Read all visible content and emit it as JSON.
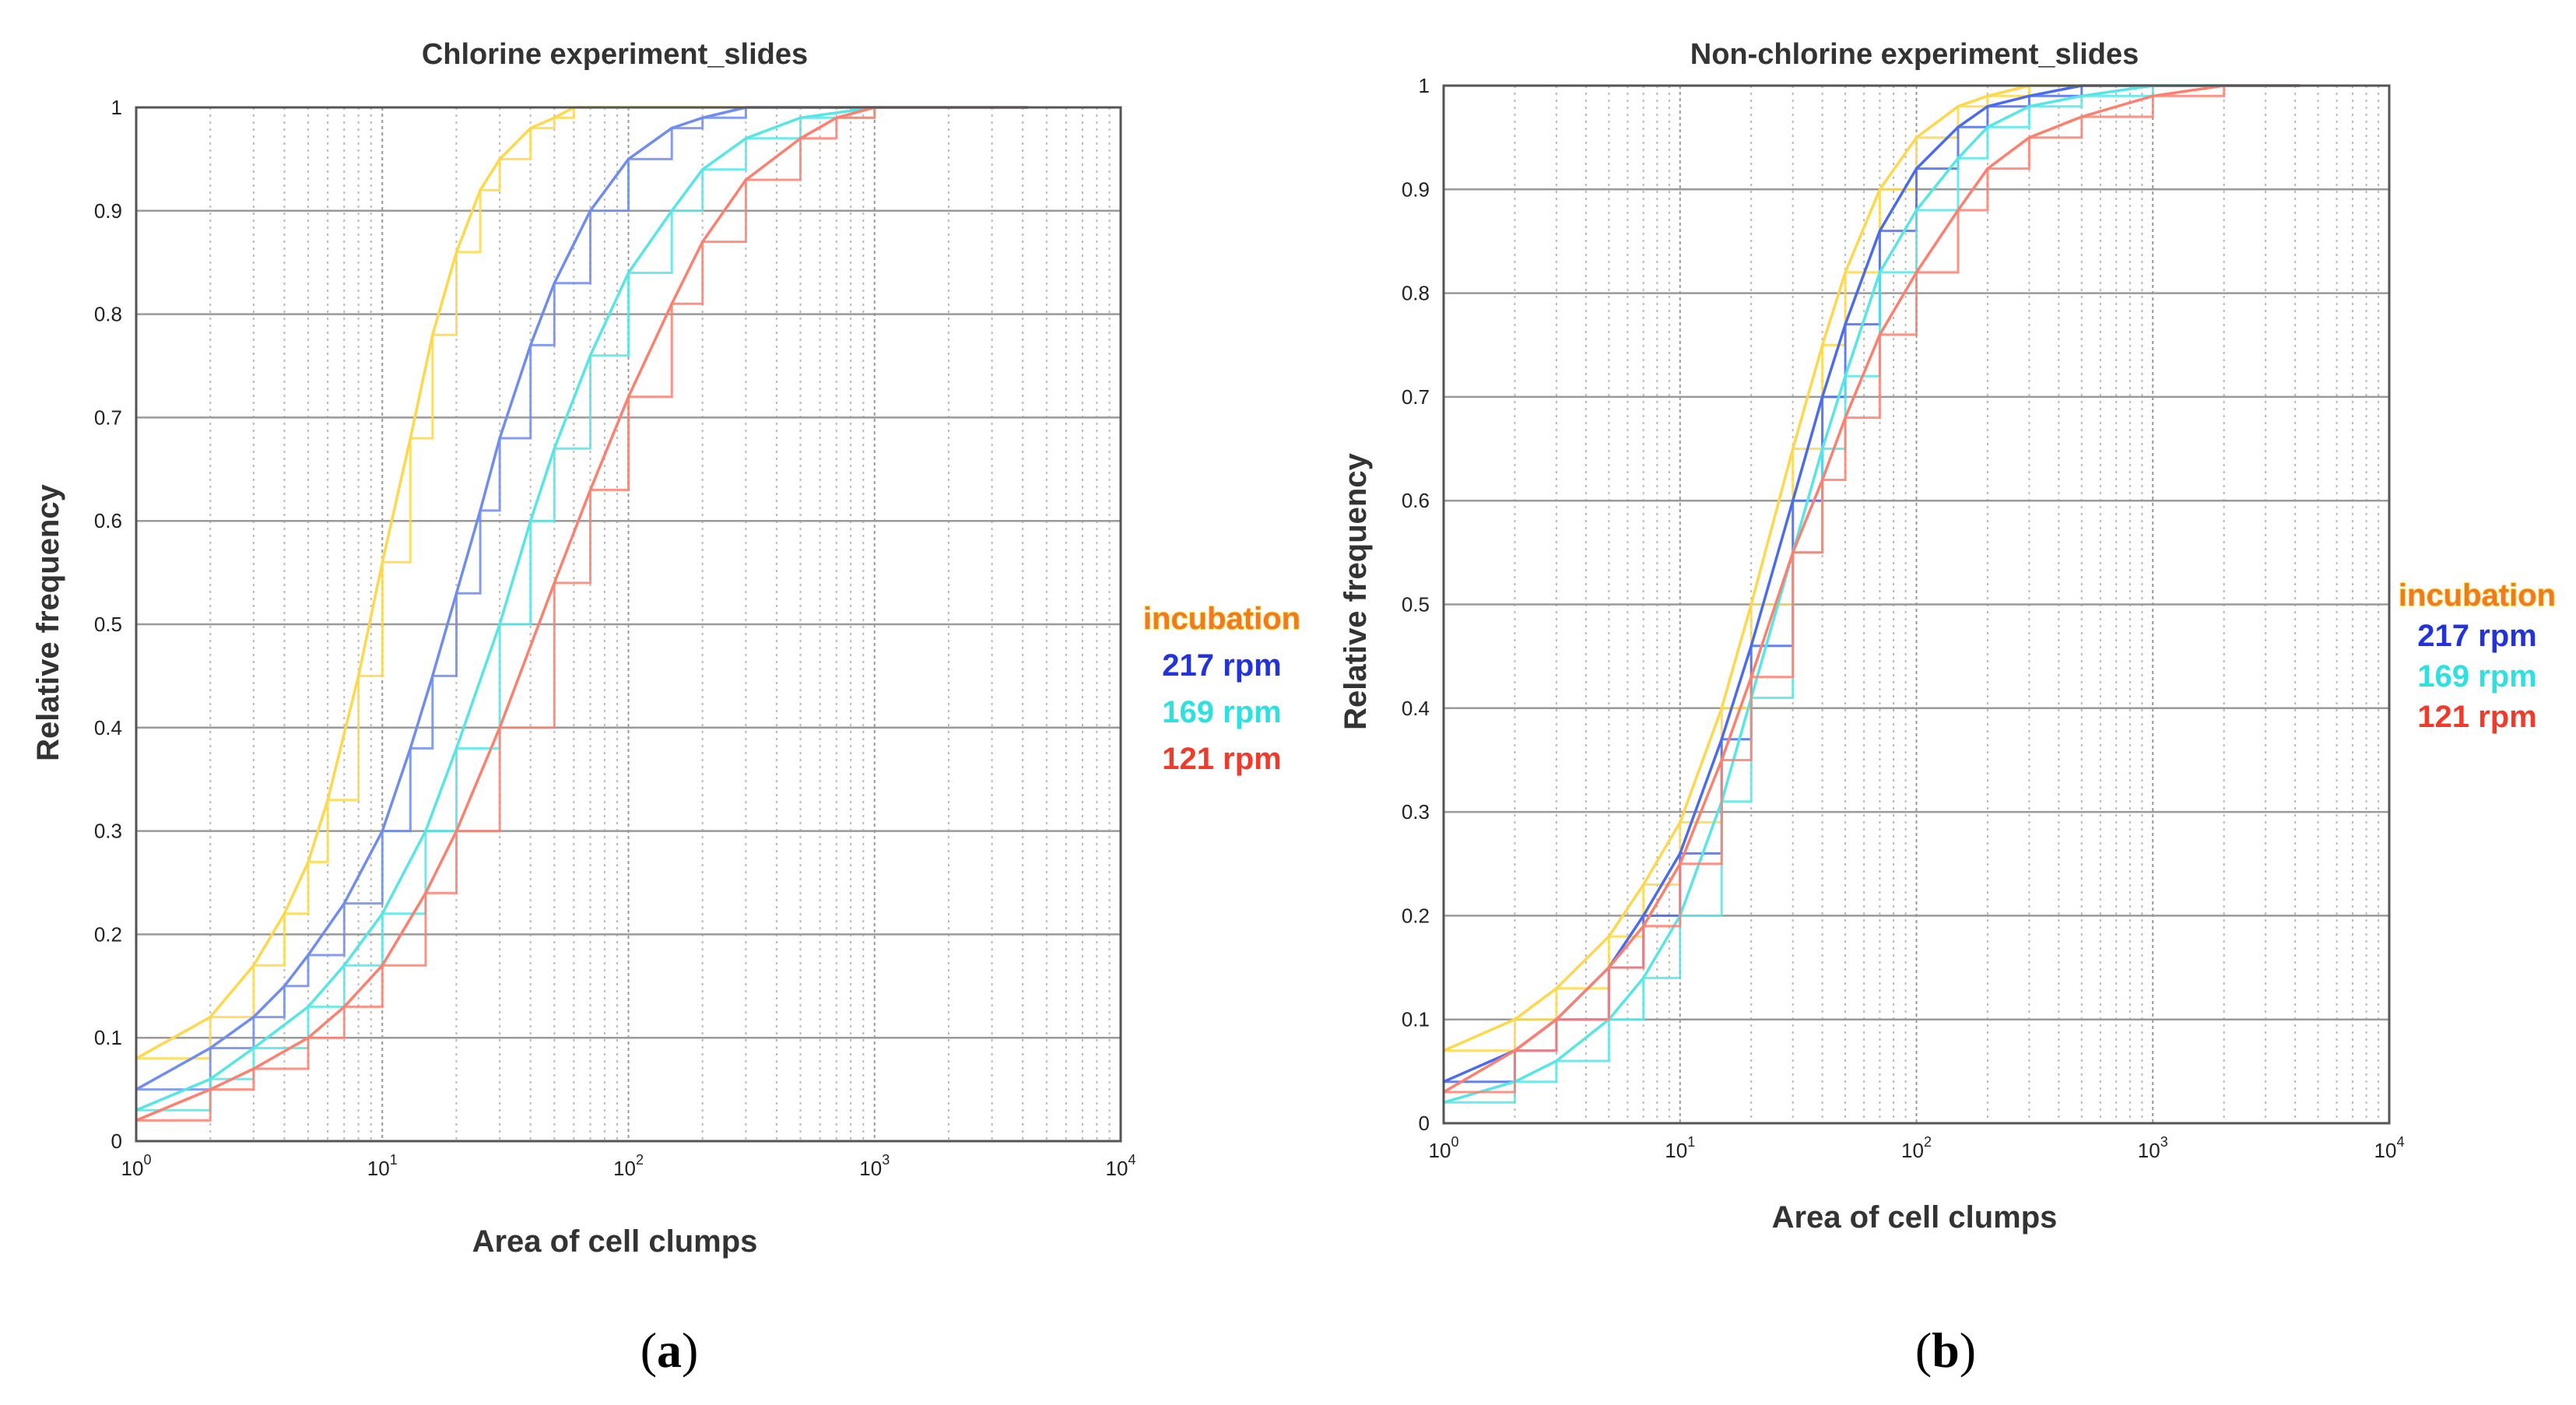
{
  "chart_data": [
    {
      "type": "line",
      "title": "Chlorine experiment_slides",
      "xlabel": "Area of cell clumps",
      "ylabel": "Relative frequency",
      "xscale": "log",
      "xlim": [
        1,
        10000
      ],
      "ylim": [
        0,
        1
      ],
      "xticks": [
        {
          "base": "10",
          "exp": "0"
        },
        {
          "base": "10",
          "exp": "1"
        },
        {
          "base": "10",
          "exp": "2"
        },
        {
          "base": "10",
          "exp": "3"
        },
        {
          "base": "10",
          "exp": "4"
        }
      ],
      "yticks": [
        "0",
        "0.1",
        "0.2",
        "0.3",
        "0.4",
        "0.5",
        "0.6",
        "0.7",
        "0.8",
        "0.9",
        "1"
      ],
      "grid": true,
      "legend_title": "incubation",
      "legend_position": "right",
      "panel_label": {
        "open": "(",
        "letter": "a",
        "close": ")"
      },
      "series": [
        {
          "name": "incubation",
          "color": "#ffd84a",
          "x": [
            1,
            2,
            3,
            4,
            5,
            6,
            8,
            10,
            13,
            16,
            20,
            25,
            30,
            40,
            50,
            60,
            80,
            100
          ],
          "y": [
            0.08,
            0.12,
            0.17,
            0.22,
            0.27,
            0.33,
            0.45,
            0.56,
            0.68,
            0.78,
            0.86,
            0.92,
            0.95,
            0.98,
            0.99,
            1.0,
            1.0,
            1.0
          ]
        },
        {
          "name": "217 rpm",
          "color": "#6f8cf0",
          "x": [
            1,
            2,
            3,
            4,
            5,
            7,
            10,
            13,
            16,
            20,
            25,
            30,
            40,
            50,
            70,
            100,
            150,
            200,
            300,
            500,
            1000
          ],
          "y": [
            0.05,
            0.09,
            0.12,
            0.15,
            0.18,
            0.23,
            0.3,
            0.38,
            0.45,
            0.53,
            0.61,
            0.68,
            0.77,
            0.83,
            0.9,
            0.95,
            0.98,
            0.99,
            1.0,
            1.0,
            1.0
          ]
        },
        {
          "name": "169 rpm",
          "color": "#55e6e6",
          "x": [
            1,
            2,
            3,
            5,
            7,
            10,
            15,
            20,
            30,
            40,
            50,
            70,
            100,
            150,
            200,
            300,
            500,
            1000
          ],
          "y": [
            0.03,
            0.06,
            0.09,
            0.13,
            0.17,
            0.22,
            0.3,
            0.38,
            0.5,
            0.6,
            0.67,
            0.76,
            0.84,
            0.9,
            0.94,
            0.97,
            0.99,
            1.0
          ]
        },
        {
          "name": "121 rpm",
          "color": "#ff7f6e",
          "x": [
            1,
            2,
            3,
            5,
            7,
            10,
            15,
            20,
            30,
            50,
            70,
            100,
            150,
            200,
            300,
            500,
            700,
            1000
          ],
          "y": [
            0.02,
            0.05,
            0.07,
            0.1,
            0.13,
            0.17,
            0.24,
            0.3,
            0.4,
            0.54,
            0.63,
            0.72,
            0.81,
            0.87,
            0.93,
            0.97,
            0.99,
            1.0
          ]
        }
      ]
    },
    {
      "type": "line",
      "title": "Non-chlorine experiment_slides",
      "xlabel": "Area of cell clumps",
      "ylabel": "Relative frequency",
      "xscale": "log",
      "xlim": [
        1,
        10000
      ],
      "ylim": [
        0,
        1
      ],
      "xticks": [
        {
          "base": "10",
          "exp": "0"
        },
        {
          "base": "10",
          "exp": "1"
        },
        {
          "base": "10",
          "exp": "2"
        },
        {
          "base": "10",
          "exp": "3"
        },
        {
          "base": "10",
          "exp": "4"
        }
      ],
      "yticks": [
        "0",
        "0.1",
        "0.2",
        "0.3",
        "0.4",
        "0.5",
        "0.6",
        "0.7",
        "0.8",
        "0.9",
        "1"
      ],
      "grid": true,
      "legend_title": "incubation",
      "legend_position": "right",
      "panel_label": {
        "open": "(",
        "letter": "b",
        "close": ")"
      },
      "series": [
        {
          "name": "incubation",
          "color": "#ffd84a",
          "x": [
            1,
            2,
            3,
            5,
            7,
            10,
            15,
            20,
            30,
            40,
            50,
            70,
            100,
            150,
            200,
            300,
            500
          ],
          "y": [
            0.07,
            0.1,
            0.13,
            0.18,
            0.23,
            0.29,
            0.4,
            0.5,
            0.65,
            0.75,
            0.82,
            0.9,
            0.95,
            0.98,
            0.99,
            1.0,
            1.0
          ]
        },
        {
          "name": "217 rpm",
          "color": "#4a6bf0",
          "x": [
            1,
            2,
            3,
            5,
            7,
            10,
            15,
            20,
            30,
            40,
            50,
            70,
            100,
            150,
            200,
            300,
            500,
            700
          ],
          "y": [
            0.04,
            0.07,
            0.1,
            0.15,
            0.2,
            0.26,
            0.37,
            0.46,
            0.6,
            0.7,
            0.77,
            0.86,
            0.92,
            0.96,
            0.98,
            0.99,
            1.0,
            1.0
          ]
        },
        {
          "name": "169 rpm",
          "color": "#55e6e6",
          "x": [
            1,
            2,
            3,
            5,
            7,
            10,
            15,
            20,
            30,
            40,
            50,
            70,
            100,
            150,
            200,
            300,
            500,
            1000
          ],
          "y": [
            0.02,
            0.04,
            0.06,
            0.1,
            0.14,
            0.2,
            0.31,
            0.41,
            0.55,
            0.65,
            0.72,
            0.82,
            0.88,
            0.93,
            0.96,
            0.98,
            0.99,
            1.0
          ]
        },
        {
          "name": "121 rpm",
          "color": "#ff7f6e",
          "x": [
            1,
            2,
            3,
            5,
            7,
            10,
            15,
            20,
            30,
            40,
            50,
            70,
            100,
            150,
            200,
            300,
            500,
            1000,
            2000
          ],
          "y": [
            0.03,
            0.07,
            0.1,
            0.15,
            0.19,
            0.25,
            0.35,
            0.43,
            0.55,
            0.62,
            0.68,
            0.76,
            0.82,
            0.88,
            0.92,
            0.95,
            0.97,
            0.99,
            1.0
          ]
        }
      ]
    }
  ]
}
